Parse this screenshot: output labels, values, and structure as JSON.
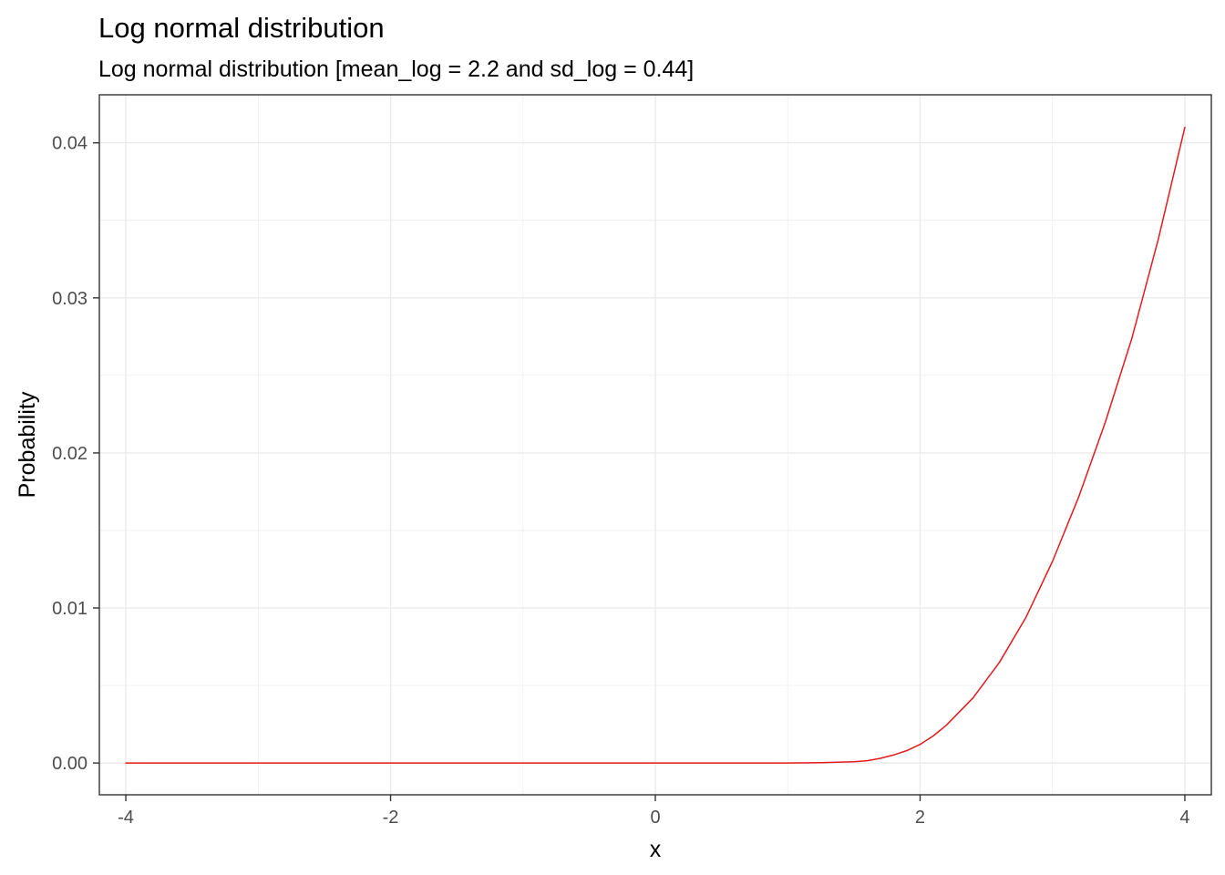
{
  "chart_data": {
    "type": "line",
    "title": "Log normal distribution",
    "subtitle": "Log normal distribution [mean_log = 2.2 and sd_log = 0.44]",
    "xlabel": "x",
    "ylabel": "Probability",
    "xlim": [
      -4.2,
      4.2
    ],
    "ylim": [
      -0.00205,
      0.0431
    ],
    "x_ticks": [
      -4,
      -2,
      0,
      2,
      4
    ],
    "x_tick_labels": [
      "-4",
      "-2",
      "0",
      "2",
      "4"
    ],
    "y_ticks": [
      0,
      0.01,
      0.02,
      0.03,
      0.04
    ],
    "y_tick_labels": [
      "0.00",
      "0.01",
      "0.02",
      "0.03",
      "0.04"
    ],
    "grid": true,
    "series": [
      {
        "color": "#e41a1c",
        "x": [
          -4,
          -3,
          -2,
          -1,
          0,
          0.5,
          1,
          1.25,
          1.5,
          1.6,
          1.7,
          1.8,
          1.9,
          2.0,
          2.1,
          2.2,
          2.4,
          2.6,
          2.8,
          3.0,
          3.2,
          3.4,
          3.6,
          3.8,
          4.0
        ],
        "y": [
          0,
          0,
          0,
          0,
          0,
          0,
          0,
          2e-05,
          8e-05,
          0.00015,
          0.0003,
          0.00052,
          0.0008,
          0.0012,
          0.00175,
          0.00245,
          0.0042,
          0.0065,
          0.0094,
          0.013,
          0.0172,
          0.022,
          0.0274,
          0.0338,
          0.041
        ]
      }
    ]
  }
}
